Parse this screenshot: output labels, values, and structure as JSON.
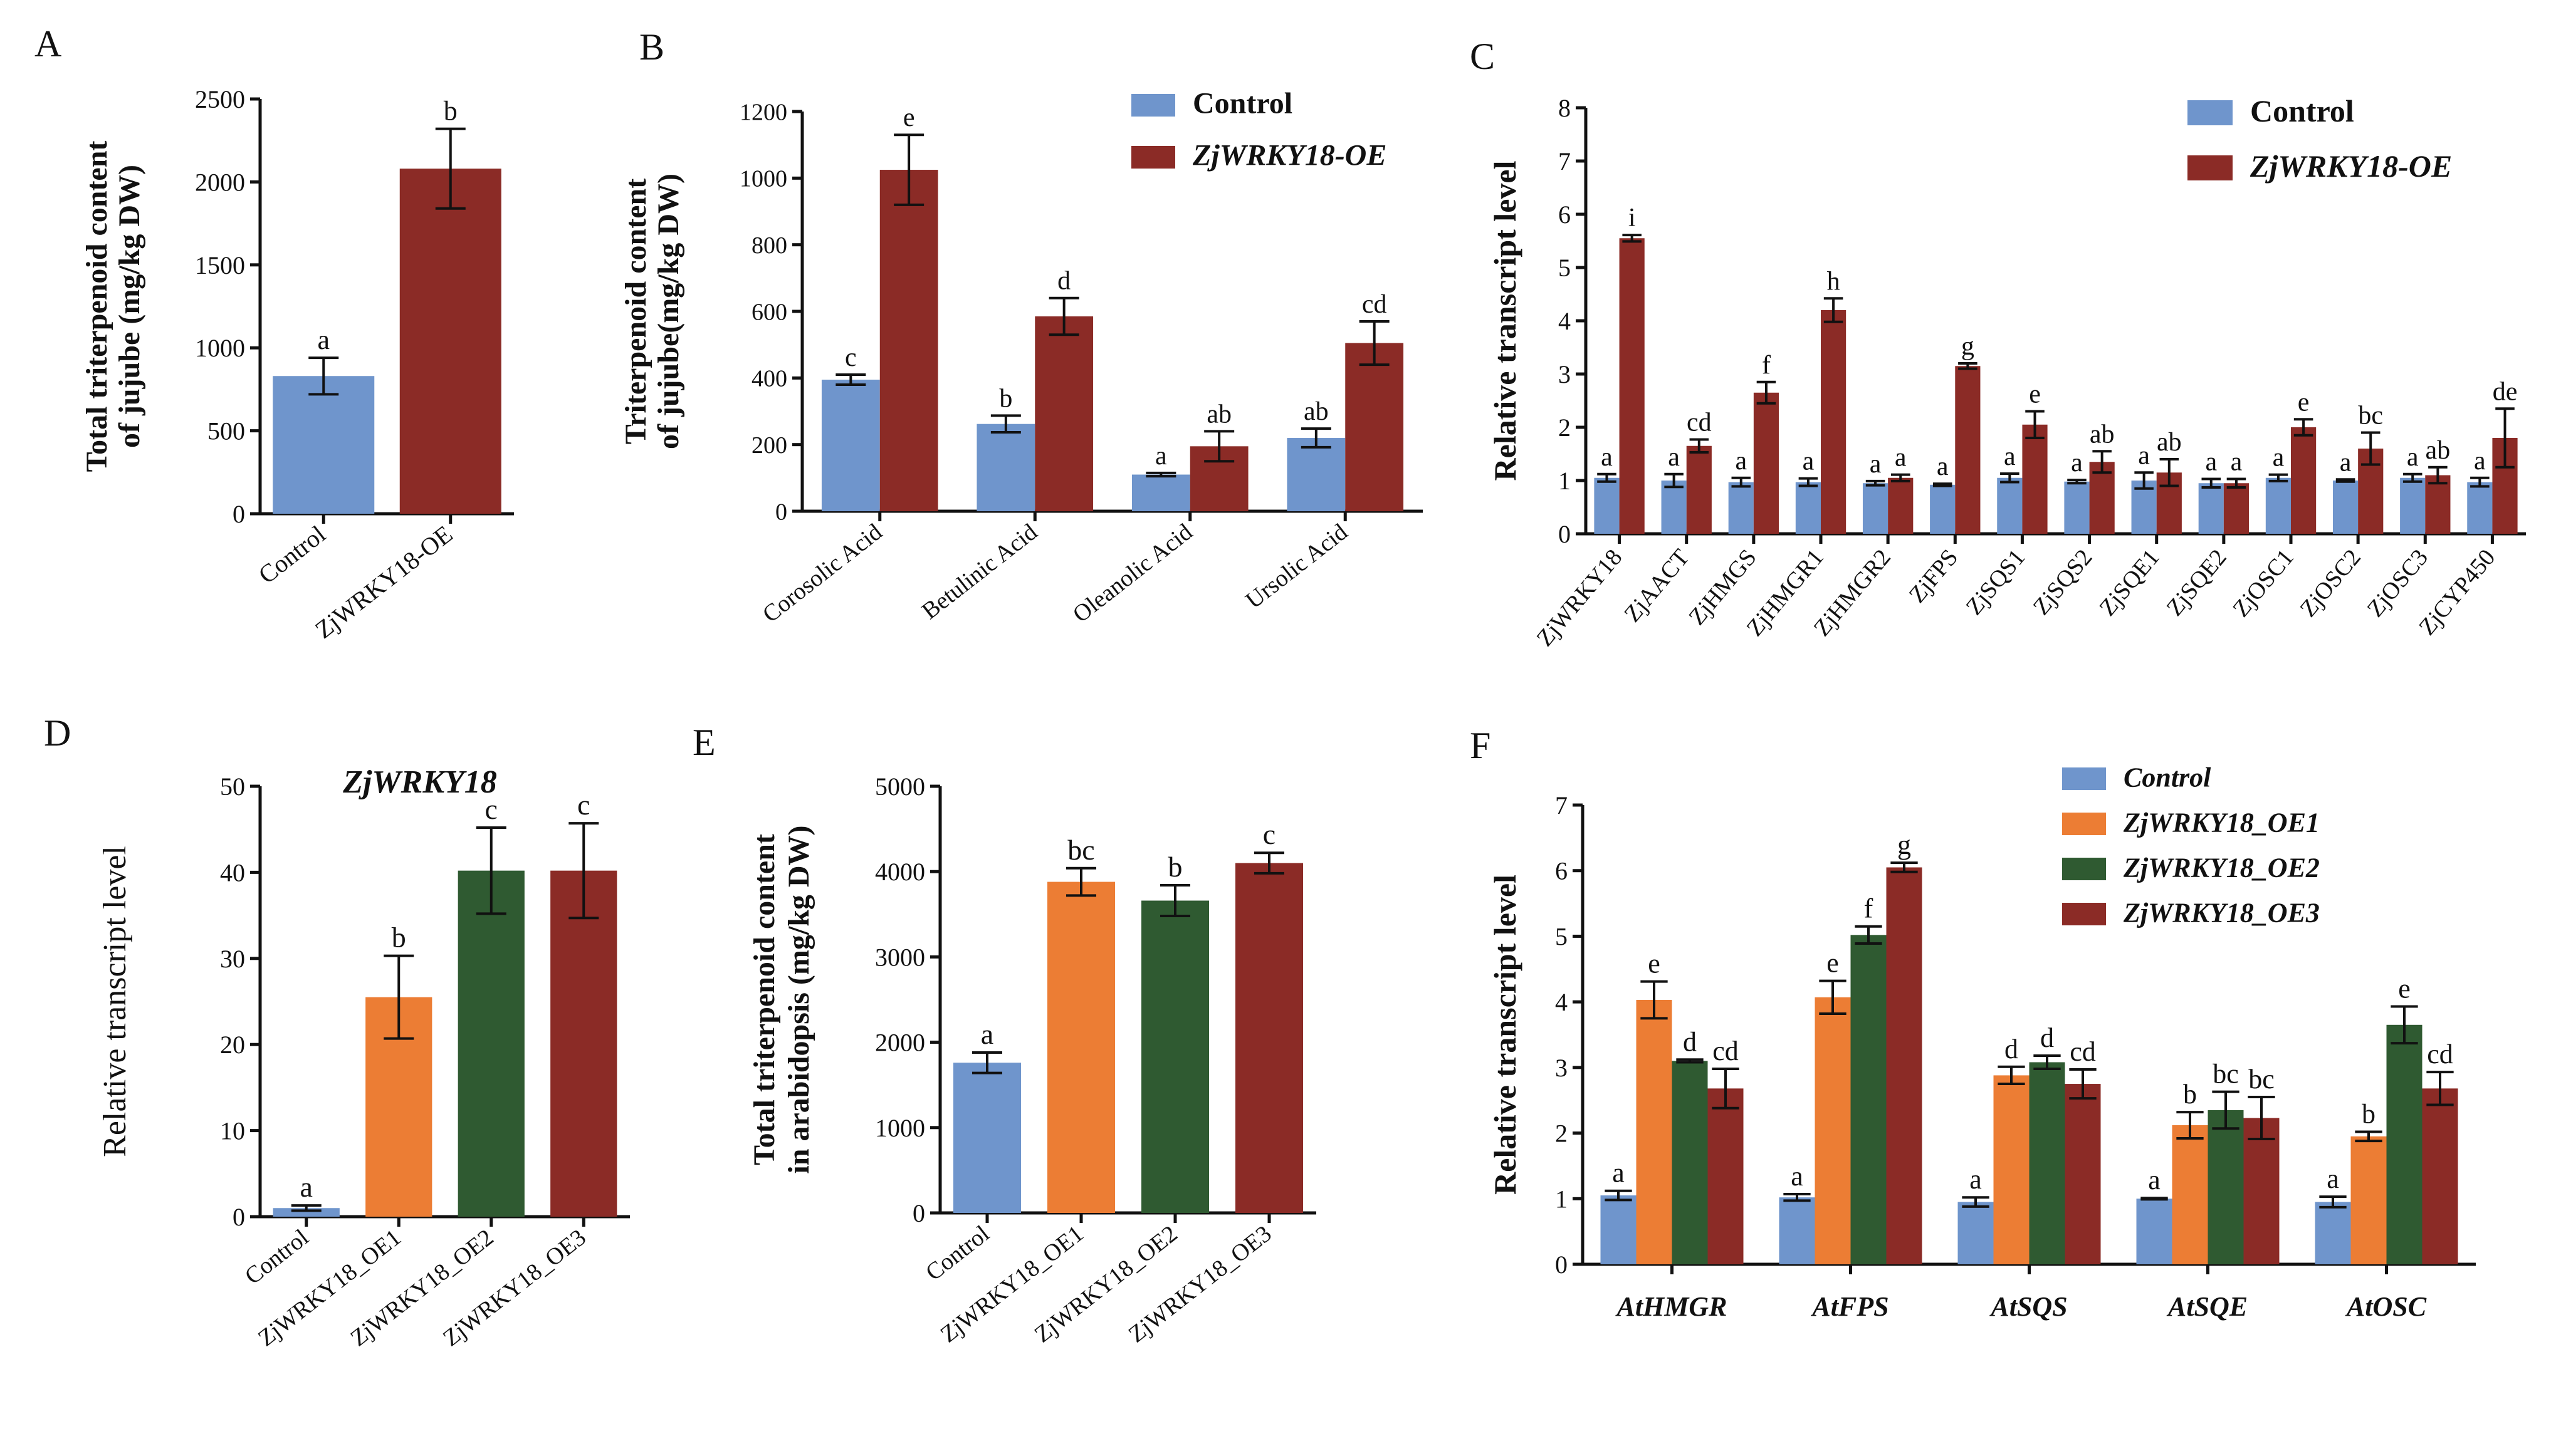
{
  "colors": {
    "control": "#6f95cc",
    "oe": "#8b2b26",
    "oe1": "#ec7d34",
    "oe2": "#2f5a31",
    "oe3": "#8b2b26",
    "axis": "#111111"
  },
  "chart_data": [
    {
      "panel": "A",
      "type": "bar",
      "ylabel": [
        "Total triterpenoid content",
        "of jujube (mg/kg DW)"
      ],
      "categories": [
        "Control",
        "ZjWRKY18-OE"
      ],
      "values": [
        830,
        2080
      ],
      "errors": [
        110,
        240
      ],
      "letters": [
        "a",
        "b"
      ],
      "color_keys": [
        "control",
        "oe"
      ],
      "ylim": [
        0,
        2500
      ],
      "yticks": [
        0,
        500,
        1000,
        1500,
        2000,
        2500
      ],
      "ytick_labels": [
        "0",
        "500",
        "1000",
        "1500",
        "2000",
        "2500"
      ]
    },
    {
      "panel": "B",
      "type": "bar",
      "ylabel": [
        "Triterpenoid content",
        "of jujube(mg/kg DW)"
      ],
      "categories": [
        "Corosolic Acid",
        "Betulinic Acid",
        "Oleanolic Acid",
        "Ursolic Acid"
      ],
      "series": [
        {
          "name": "Control",
          "color_key": "control",
          "values": [
            395,
            262,
            110,
            220
          ],
          "errors": [
            15,
            25,
            5,
            28
          ],
          "letters": [
            "c",
            "b",
            "a",
            "ab"
          ]
        },
        {
          "name": "ZjWRKY18-OE",
          "color_key": "oe",
          "values": [
            1025,
            585,
            195,
            505
          ],
          "errors": [
            105,
            55,
            45,
            65
          ],
          "letters": [
            "e",
            "d",
            "ab",
            "cd"
          ]
        }
      ],
      "legend": [
        "Control",
        "ZjWRKY18-OE"
      ],
      "ylim": [
        0,
        1200
      ],
      "yticks": [
        0,
        200,
        400,
        600,
        800,
        1000,
        1200
      ],
      "ytick_labels": [
        "0",
        "200",
        "400",
        "600",
        "800",
        "1000",
        "1200"
      ]
    },
    {
      "panel": "C",
      "type": "bar",
      "ylabel": [
        "Relative transcript level"
      ],
      "categories": [
        "ZjWRKY18",
        "ZjAACT",
        "ZjHMGS",
        "ZjHMGR1",
        "ZjHMGR2",
        "ZjFPS",
        "ZjSQS1",
        "ZjSQS2",
        "ZjSQE1",
        "ZjSQE2",
        "ZjOSC1",
        "ZjOSC2",
        "ZjOSC3",
        "ZjCYP450"
      ],
      "series": [
        {
          "name": "Control",
          "color_key": "control",
          "values": [
            1.05,
            1.0,
            0.97,
            0.97,
            0.95,
            0.92,
            1.05,
            0.98,
            1.0,
            0.95,
            1.05,
            1.0,
            1.05,
            0.97
          ],
          "errors": [
            0.07,
            0.12,
            0.08,
            0.07,
            0.04,
            0.02,
            0.08,
            0.03,
            0.15,
            0.08,
            0.06,
            0.02,
            0.07,
            0.08
          ],
          "letters": [
            "a",
            "a",
            "a",
            "a",
            "a",
            "a",
            "a",
            "a",
            "a",
            "a",
            "a",
            "a",
            "a",
            "a"
          ]
        },
        {
          "name": "ZjWRKY18-OE",
          "color_key": "oe",
          "values": [
            5.55,
            1.65,
            2.65,
            4.2,
            1.05,
            3.15,
            2.05,
            1.35,
            1.15,
            0.95,
            2.0,
            1.6,
            1.1,
            1.8
          ],
          "errors": [
            0.06,
            0.12,
            0.2,
            0.22,
            0.06,
            0.05,
            0.25,
            0.2,
            0.25,
            0.08,
            0.15,
            0.3,
            0.15,
            0.55
          ],
          "letters": [
            "i",
            "cd",
            "f",
            "h",
            "a",
            "g",
            "e",
            "ab",
            "ab",
            "a",
            "e",
            "bc",
            "ab",
            "de"
          ]
        }
      ],
      "legend": [
        "Control",
        "ZjWRKY18-OE"
      ],
      "ylim": [
        0,
        8
      ],
      "yticks": [
        0,
        1,
        2,
        3,
        4,
        5,
        6,
        7,
        8
      ],
      "ytick_labels": [
        "0",
        "1",
        "2",
        "3",
        "4",
        "5",
        "6",
        "7",
        "8"
      ]
    },
    {
      "panel": "D",
      "type": "bar",
      "title": "ZjWRKY18",
      "ylabel": [
        "Relative transcript level"
      ],
      "categories": [
        "Control",
        "ZjWRKY18_OE1",
        "ZjWRKY18_OE2",
        "ZjWRKY18_OE3"
      ],
      "values": [
        1,
        25.5,
        40.2,
        40.2
      ],
      "errors": [
        0.3,
        4.8,
        5.0,
        5.5
      ],
      "letters": [
        "a",
        "b",
        "c",
        "c"
      ],
      "color_keys": [
        "control",
        "oe1",
        "oe2",
        "oe3"
      ],
      "ylim": [
        0,
        50
      ],
      "yticks": [
        0,
        10,
        20,
        30,
        40,
        50
      ],
      "ytick_labels": [
        "0",
        "10",
        "20",
        "30",
        "40",
        "50"
      ]
    },
    {
      "panel": "E",
      "type": "bar",
      "ylabel": [
        "Total triterpenoid content",
        "in arabidopsis (mg/kg DW)"
      ],
      "categories": [
        "Control",
        "ZjWRKY18_OE1",
        "ZjWRKY18_OE2",
        "ZjWRKY18_OE3"
      ],
      "values": [
        1760,
        3880,
        3660,
        4100
      ],
      "errors": [
        120,
        160,
        180,
        120
      ],
      "letters": [
        "a",
        "bc",
        "b",
        "c"
      ],
      "color_keys": [
        "control",
        "oe1",
        "oe2",
        "oe3"
      ],
      "ylim": [
        0,
        5000
      ],
      "yticks": [
        0,
        1000,
        2000,
        3000,
        4000,
        5000
      ],
      "ytick_labels": [
        "0",
        "1000",
        "2000",
        "3000",
        "4000",
        "5000"
      ]
    },
    {
      "panel": "F",
      "type": "bar",
      "ylabel": [
        "Relative transcript level"
      ],
      "categories": [
        "AtHMGR",
        "AtFPS",
        "AtSQS",
        "AtSQE",
        "AtOSC"
      ],
      "series": [
        {
          "name": "Control",
          "color_key": "control",
          "values": [
            1.05,
            1.02,
            0.95,
            1.0,
            0.95
          ],
          "errors": [
            0.07,
            0.05,
            0.07,
            0.01,
            0.08
          ],
          "letters": [
            "a",
            "a",
            "a",
            "a",
            "a"
          ]
        },
        {
          "name": "ZjWRKY18_OE1",
          "color_key": "oe1",
          "values": [
            4.03,
            4.07,
            2.88,
            2.12,
            1.95
          ],
          "errors": [
            0.28,
            0.25,
            0.13,
            0.2,
            0.07
          ],
          "letters": [
            "e",
            "e",
            "d",
            "b",
            "b"
          ]
        },
        {
          "name": "ZjWRKY18_OE2",
          "color_key": "oe2",
          "values": [
            3.1,
            5.02,
            3.08,
            2.35,
            3.65
          ],
          "errors": [
            0.02,
            0.13,
            0.1,
            0.28,
            0.28
          ],
          "letters": [
            "d",
            "f",
            "d",
            "bc",
            "e"
          ]
        },
        {
          "name": "ZjWRKY18_OE3",
          "color_key": "oe3",
          "values": [
            2.68,
            6.05,
            2.75,
            2.23,
            2.68
          ],
          "errors": [
            0.3,
            0.07,
            0.22,
            0.32,
            0.25
          ],
          "letters": [
            "cd",
            "g",
            "cd",
            "bc",
            "cd"
          ]
        }
      ],
      "legend": [
        "Control",
        "ZjWRKY18_OE1",
        "ZjWRKY18_OE2",
        "ZjWRKY18_OE3"
      ],
      "ylim": [
        0,
        7
      ],
      "yticks": [
        0,
        1,
        2,
        3,
        4,
        5,
        6,
        7
      ],
      "ytick_labels": [
        "0",
        "1",
        "2",
        "3",
        "4",
        "5",
        "6",
        "7"
      ]
    }
  ]
}
